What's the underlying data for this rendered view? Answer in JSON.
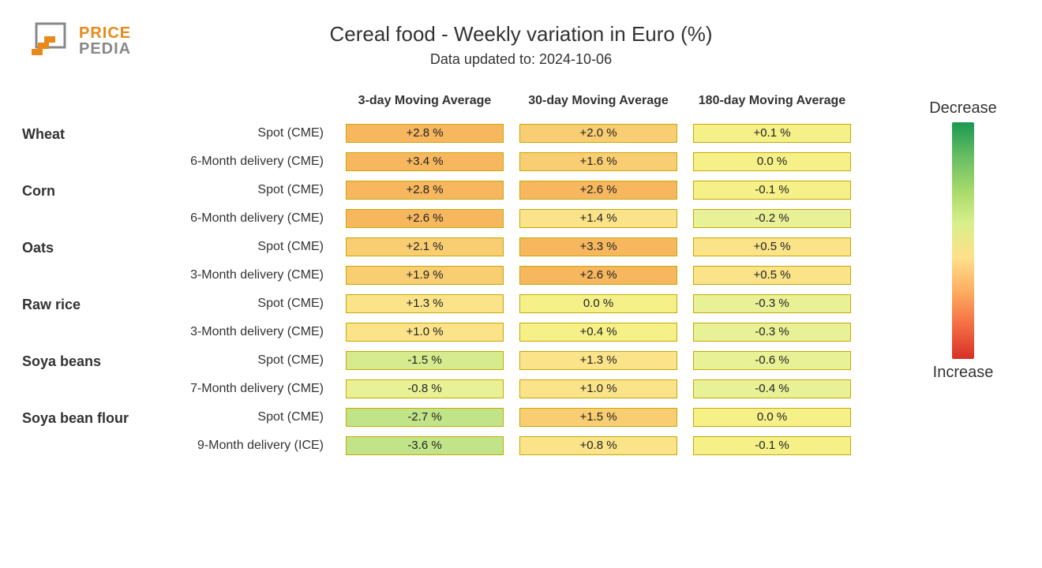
{
  "logo": {
    "top": "PRICE",
    "bottom": "PEDIA"
  },
  "title": "Cereal food - Weekly variation in Euro (%)",
  "subtitle": "Data updated to: 2024-10-06",
  "columns": [
    "3-day Moving Average",
    "30-day Moving Average",
    "180-day Moving Average"
  ],
  "legend": {
    "top": "Decrease",
    "bottom": "Increase",
    "gradient_stops": [
      "#1a9850",
      "#66bd63",
      "#a6d96a",
      "#d9ef8b",
      "#fee08b",
      "#fdae61",
      "#f46d43",
      "#d73027"
    ]
  },
  "colors": {
    "cell_border": "#c9a800",
    "plus_high": "#f7b75f",
    "plus_mid": "#f9cd72",
    "plus_low": "#fbe389",
    "neutral": "#f5f088",
    "minus_low": "#e9f196",
    "minus_mid": "#d5eb8e",
    "minus_high": "#c2e488"
  },
  "groups": [
    {
      "name": "Wheat",
      "rows": [
        {
          "label": "Spot (CME)",
          "cells": [
            {
              "text": "+2.8 %",
              "value": 2.8
            },
            {
              "text": "+2.0 %",
              "value": 2.0
            },
            {
              "text": "+0.1 %",
              "value": 0.1
            }
          ]
        },
        {
          "label": "6-Month delivery (CME)",
          "cells": [
            {
              "text": "+3.4 %",
              "value": 3.4
            },
            {
              "text": "+1.6 %",
              "value": 1.6
            },
            {
              "text": "0.0 %",
              "value": 0.0
            }
          ]
        }
      ]
    },
    {
      "name": "Corn",
      "rows": [
        {
          "label": "Spot (CME)",
          "cells": [
            {
              "text": "+2.8 %",
              "value": 2.8
            },
            {
              "text": "+2.6 %",
              "value": 2.6
            },
            {
              "text": "-0.1 %",
              "value": -0.1
            }
          ]
        },
        {
          "label": "6-Month delivery (CME)",
          "cells": [
            {
              "text": "+2.6 %",
              "value": 2.6
            },
            {
              "text": "+1.4 %",
              "value": 1.4
            },
            {
              "text": "-0.2 %",
              "value": -0.2
            }
          ]
        }
      ]
    },
    {
      "name": "Oats",
      "rows": [
        {
          "label": "Spot (CME)",
          "cells": [
            {
              "text": "+2.1 %",
              "value": 2.1
            },
            {
              "text": "+3.3 %",
              "value": 3.3
            },
            {
              "text": "+0.5 %",
              "value": 0.5
            }
          ]
        },
        {
          "label": "3-Month delivery (CME)",
          "cells": [
            {
              "text": "+1.9 %",
              "value": 1.9
            },
            {
              "text": "+2.6 %",
              "value": 2.6
            },
            {
              "text": "+0.5 %",
              "value": 0.5
            }
          ]
        }
      ]
    },
    {
      "name": "Raw rice",
      "rows": [
        {
          "label": "Spot (CME)",
          "cells": [
            {
              "text": "+1.3 %",
              "value": 1.3
            },
            {
              "text": "0.0 %",
              "value": 0.0
            },
            {
              "text": "-0.3 %",
              "value": -0.3
            }
          ]
        },
        {
          "label": "3-Month delivery (CME)",
          "cells": [
            {
              "text": "+1.0 %",
              "value": 1.0
            },
            {
              "text": "+0.4 %",
              "value": 0.4
            },
            {
              "text": "-0.3 %",
              "value": -0.3
            }
          ]
        }
      ]
    },
    {
      "name": "Soya beans",
      "rows": [
        {
          "label": "Spot (CME)",
          "cells": [
            {
              "text": "-1.5 %",
              "value": -1.5
            },
            {
              "text": "+1.3 %",
              "value": 1.3
            },
            {
              "text": "-0.6 %",
              "value": -0.6
            }
          ]
        },
        {
          "label": "7-Month delivery (CME)",
          "cells": [
            {
              "text": "-0.8 %",
              "value": -0.8
            },
            {
              "text": "+1.0 %",
              "value": 1.0
            },
            {
              "text": "-0.4 %",
              "value": -0.4
            }
          ]
        }
      ]
    },
    {
      "name": "Soya bean flour",
      "rows": [
        {
          "label": "Spot (CME)",
          "cells": [
            {
              "text": "-2.7 %",
              "value": -2.7
            },
            {
              "text": "+1.5 %",
              "value": 1.5
            },
            {
              "text": "0.0 %",
              "value": 0.0
            }
          ]
        },
        {
          "label": "9-Month delivery (ICE)",
          "cells": [
            {
              "text": "-3.6 %",
              "value": -3.6
            },
            {
              "text": "+0.8 %",
              "value": 0.8
            },
            {
              "text": "-0.1 %",
              "value": -0.1
            }
          ]
        }
      ]
    }
  ]
}
